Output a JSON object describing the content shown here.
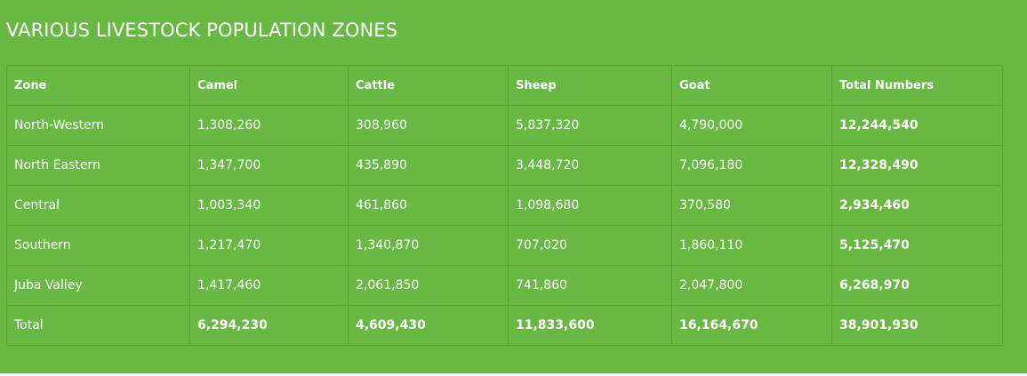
{
  "title": "VARIOUS LIVESTOCK POPULATION ZONES",
  "colors": {
    "background": "#68b843",
    "border": "#57a332",
    "text": "#ffffff"
  },
  "table": {
    "headers": [
      "Zone",
      "Camel",
      "Cattle",
      "Sheep",
      "Goat",
      "Total Numbers"
    ],
    "rows": [
      [
        "North-Western",
        "1,308,260",
        "308,960",
        "5,837,320",
        "4,790,000",
        "12,244,540"
      ],
      [
        "North Eastern",
        "1,347,700",
        "435,890",
        "3,448,720",
        "7,096,180",
        "12,328,490"
      ],
      [
        "Central",
        "1,003,340",
        "461,860",
        "1,098,680",
        "370,580",
        "2,934,460"
      ],
      [
        "Southern",
        "1,217,470",
        "1,340,870",
        "707,020",
        "1,860,110",
        "5,125,470"
      ],
      [
        "Juba Valley",
        "1,417,460",
        "2,061,850",
        "741,860",
        "2,047,800",
        "6,268,970"
      ],
      [
        "Total",
        "6,294,230",
        "4,609,430",
        "11,833,600",
        "16,164,670",
        "38,901,930"
      ]
    ]
  }
}
